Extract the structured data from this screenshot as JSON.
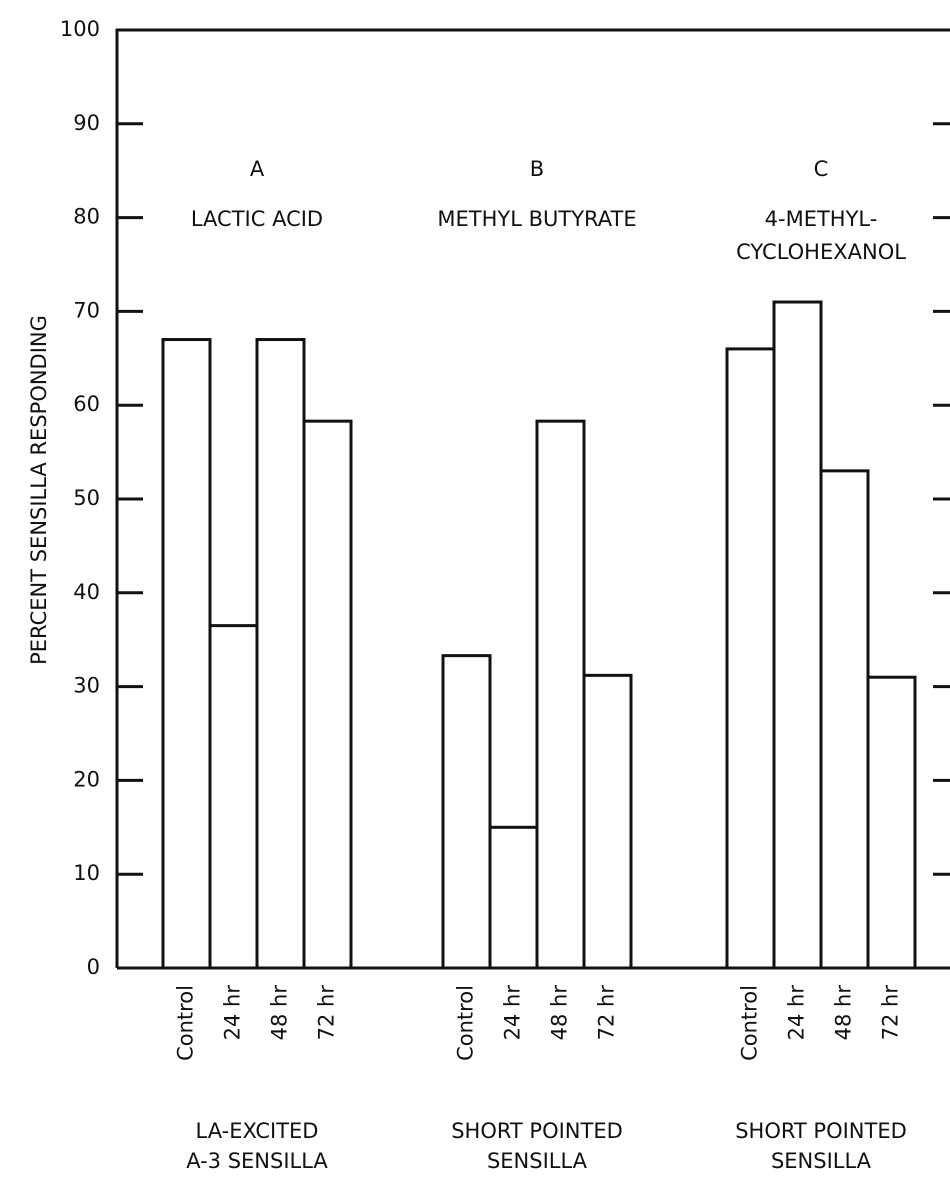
{
  "chart_data": {
    "type": "bar",
    "y_label": "PERCENT SENSILLA RESPONDING",
    "ylim": [
      0,
      100
    ],
    "yticks": [
      0,
      10,
      20,
      30,
      40,
      50,
      60,
      70,
      80,
      90,
      100
    ],
    "color": "#ffffff",
    "groups": [
      {
        "letter": "A",
        "name": [
          "LACTIC ACID"
        ],
        "caption": [
          "LA-EXCITED",
          "A-3 SENSILLA"
        ],
        "categories": [
          "Control",
          "24 hr",
          "48 hr",
          "72 hr"
        ],
        "values": [
          67,
          36.5,
          67,
          58.3
        ]
      },
      {
        "letter": "B",
        "name": [
          "METHYL BUTYRATE"
        ],
        "caption": [
          "SHORT POINTED",
          "SENSILLA"
        ],
        "categories": [
          "Control",
          "24 hr",
          "48 hr",
          "72 hr"
        ],
        "values": [
          33.3,
          15,
          58.3,
          31.2
        ]
      },
      {
        "letter": "C",
        "name": [
          "4-METHYL-",
          "CYCLOHEXANOL"
        ],
        "caption": [
          "SHORT POINTED",
          "SENSILLA"
        ],
        "categories": [
          "Control",
          "24 hr",
          "48 hr",
          "72 hr"
        ],
        "values": [
          66,
          71,
          53,
          31
        ]
      }
    ]
  }
}
